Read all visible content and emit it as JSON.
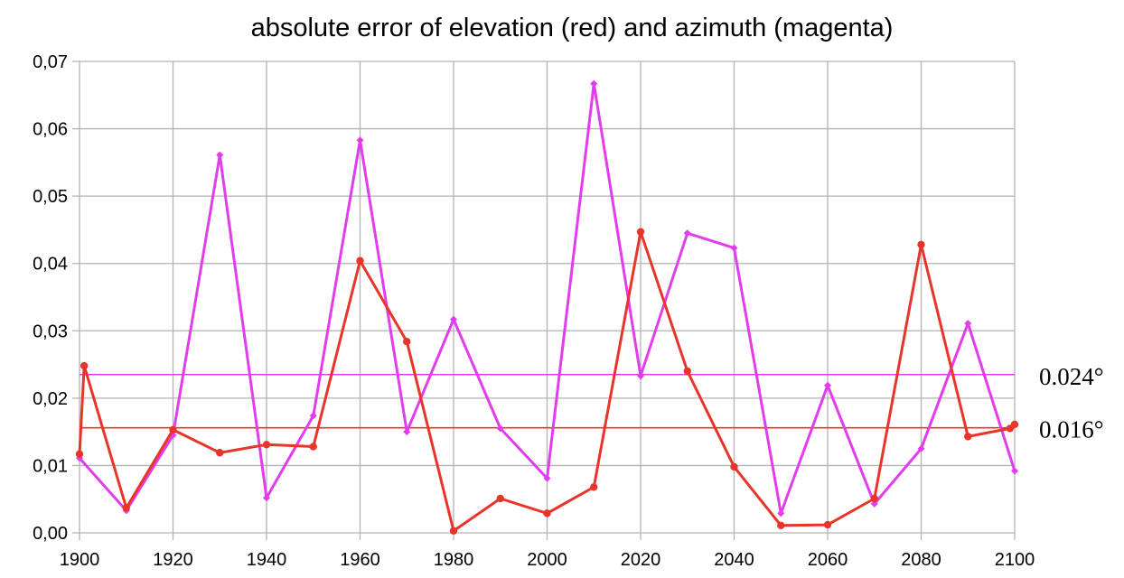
{
  "chart_data": {
    "type": "line",
    "title": "absolute error of elevation (red) and azimuth (magenta)",
    "xlabel": "",
    "ylabel": "",
    "xlim": [
      1900,
      2100
    ],
    "ylim": [
      0,
      0.07
    ],
    "x_ticks": [
      "1900",
      "1920",
      "1940",
      "1960",
      "1980",
      "2000",
      "2020",
      "2040",
      "2060",
      "2080",
      "2100"
    ],
    "y_ticks": [
      "0,00",
      "0,01",
      "0,02",
      "0,03",
      "0,04",
      "0,05",
      "0,06",
      "0,07"
    ],
    "grid": true,
    "series": [
      {
        "color": "#e8352a",
        "x": [
          1900,
          1901,
          1910,
          1920,
          1930,
          1940,
          1950,
          1960,
          1970,
          1980,
          1990,
          2000,
          2010,
          2020,
          2030,
          2040,
          2050,
          2060,
          2070,
          2080,
          2090,
          2099,
          2100
        ],
        "values": [
          0.0117,
          0.0248,
          0.0037,
          0.0153,
          0.0119,
          0.0131,
          0.0128,
          0.0404,
          0.0284,
          0.0003,
          0.0051,
          0.0029,
          0.0068,
          0.0447,
          0.024,
          0.0098,
          0.0011,
          0.0012,
          0.0051,
          0.0428,
          0.0143,
          0.0155,
          0.0161
        ]
      },
      {
        "color": "#e23ded",
        "x": [
          1900,
          1910,
          1920,
          1930,
          1940,
          1950,
          1960,
          1970,
          1980,
          1990,
          2000,
          2010,
          2020,
          2030,
          2040,
          2050,
          2060,
          2070,
          2080,
          2090,
          2100
        ],
        "values": [
          0.0111,
          0.0033,
          0.0145,
          0.0561,
          0.0052,
          0.0174,
          0.0583,
          0.015,
          0.0317,
          0.0155,
          0.0081,
          0.0667,
          0.0233,
          0.0445,
          0.0423,
          0.0029,
          0.0219,
          0.0043,
          0.0125,
          0.0311,
          0.0092
        ]
      }
    ],
    "reference_lines": [
      {
        "value": 0.0235,
        "color": "#e23ded",
        "label": "0.024°"
      },
      {
        "value": 0.0156,
        "color": "#e8352a",
        "label": "0.016°"
      }
    ]
  }
}
